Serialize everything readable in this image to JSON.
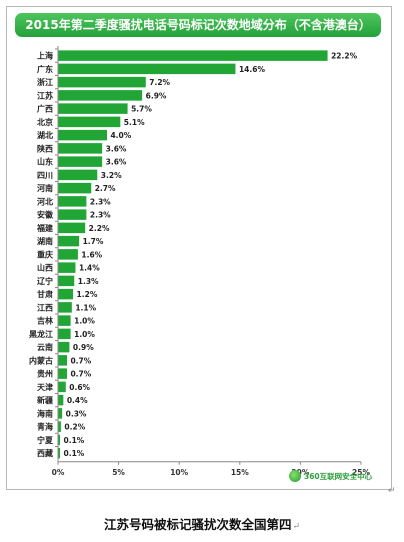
{
  "title": "2015年第二季度骚扰电话号码标记次数地域分布（不含港澳台）",
  "caption": "江苏号码被标记骚扰次数全国第四",
  "return_mark": "↵",
  "logo_text": "360互联网安全中心",
  "colors": {
    "bar": "#21a535",
    "title_bg": "#2ba63d",
    "axis": "#888888",
    "grid": "#b0b0b0"
  },
  "chart_data": {
    "type": "bar",
    "orientation": "horizontal",
    "categories": [
      "上海",
      "广东",
      "浙江",
      "江苏",
      "广西",
      "北京",
      "湖北",
      "陕西",
      "山东",
      "四川",
      "河南",
      "河北",
      "安徽",
      "福建",
      "湖南",
      "重庆",
      "山西",
      "辽宁",
      "甘肃",
      "江西",
      "吉林",
      "黑龙江",
      "云南",
      "内蒙古",
      "贵州",
      "天津",
      "新疆",
      "海南",
      "青海",
      "宁夏",
      "西藏"
    ],
    "values": [
      22.2,
      14.6,
      7.2,
      6.9,
      5.7,
      5.1,
      4.0,
      3.6,
      3.6,
      3.2,
      2.7,
      2.3,
      2.3,
      2.2,
      1.7,
      1.6,
      1.4,
      1.3,
      1.2,
      1.1,
      1.0,
      1.0,
      0.9,
      0.7,
      0.7,
      0.6,
      0.4,
      0.3,
      0.2,
      0.1,
      0.1
    ],
    "value_labels": [
      "22.2%",
      "14.6%",
      "7.2%",
      "6.9%",
      "5.7%",
      "5.1%",
      "4.0%",
      "3.6%",
      "3.6%",
      "3.2%",
      "2.7%",
      "2.3%",
      "2.3%",
      "2.2%",
      "1.7%",
      "1.6%",
      "1.4%",
      "1.3%",
      "1.2%",
      "1.1%",
      "1.0%",
      "1.0%",
      "0.9%",
      "0.7%",
      "0.7%",
      "0.6%",
      "0.4%",
      "0.3%",
      "0.2%",
      "0.1%",
      "0.1%"
    ],
    "xlim": [
      0,
      25
    ],
    "xticks": [
      "0%",
      "5%",
      "10%",
      "15%",
      "20%",
      "25%"
    ],
    "grid": false,
    "legend": "none"
  }
}
